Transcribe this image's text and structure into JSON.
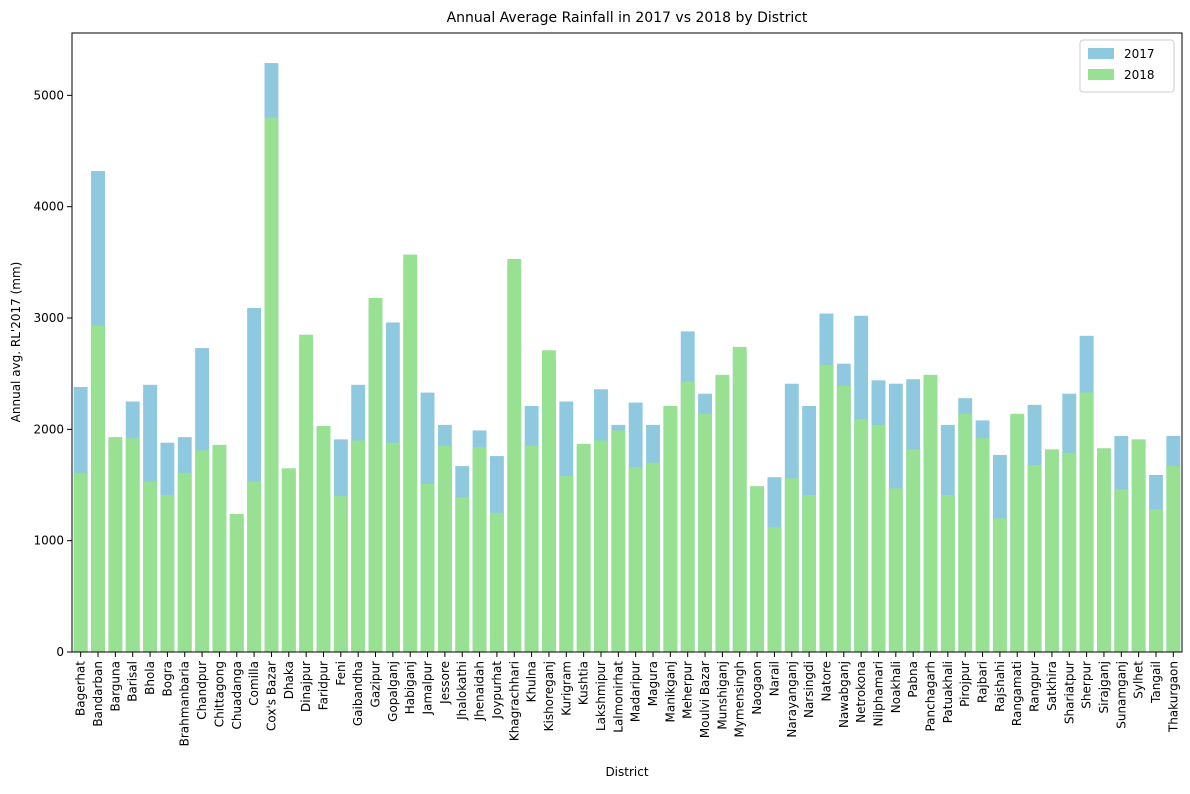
{
  "chart_data": {
    "type": "bar",
    "title": "Annual Average Rainfall in 2017 vs 2018 by District",
    "xlabel": "District",
    "ylabel": "Annual avg. RL'2017 (mm)",
    "ylim": [
      0,
      5560
    ],
    "yticks": [
      0,
      1000,
      2000,
      3000,
      4000,
      5000
    ],
    "legend_position": "top-right",
    "grid": false,
    "categories": [
      "Bagerhat",
      "Bandarban",
      "Barguna",
      "Barisal",
      "Bhola",
      "Bogra",
      "Brahmanbaria",
      "Chandpur",
      "Chittagong",
      "Chuadanga",
      "Comilla",
      "Cox's Bazar",
      "Dhaka",
      "Dinajpur",
      "Faridpur",
      "Feni",
      "Gaibandha",
      "Gazipur",
      "Gopalganj",
      "Habiganj",
      "Jamalpur",
      "Jessore",
      "Jhalokathi",
      "Jhenaidah",
      "Joypurhat",
      "Khagrachhari",
      "Khulna",
      "Kishoreganj",
      "Kurigram",
      "Kushtia",
      "Lakshmipur",
      "Lalmonirhat",
      "Madaripur",
      "Magura",
      "Manikganj",
      "Meherpur",
      "Moulvi Bazar",
      "Munshiganj",
      "Mymensingh",
      "Naogaon",
      "Narail",
      "Narayanganj",
      "Narsingdi",
      "Natore",
      "Nawabganj",
      "Netrokona",
      "Nilphamari",
      "Noakhali",
      "Pabna",
      "Panchagarh",
      "Patuakhali",
      "Pirojpur",
      "Rajbari",
      "Rajshahi",
      "Rangamati",
      "Rangpur",
      "Satkhira",
      "Shariatpur",
      "Sherpur",
      "Sirajganj",
      "Sunamganj",
      "Sylhet",
      "Tangail",
      "Thakurgaon"
    ],
    "series": [
      {
        "name": "2017",
        "color": "#8ec9e0",
        "values": [
          2380,
          4320,
          1900,
          2250,
          2400,
          1880,
          1930,
          2730,
          1840,
          1230,
          3090,
          5290,
          1640,
          2810,
          2020,
          1910,
          2400,
          3100,
          2960,
          3500,
          2330,
          2040,
          1670,
          1990,
          1760,
          3460,
          2210,
          2630,
          2250,
          1850,
          2360,
          2040,
          2240,
          2040,
          2200,
          2880,
          2320,
          2460,
          2700,
          1480,
          1570,
          2410,
          2210,
          3040,
          2590,
          3020,
          2440,
          2410,
          2450,
          2460,
          2040,
          2280,
          2080,
          1770,
          2120,
          2220,
          1800,
          2320,
          2840,
          1810,
          1940,
          1900,
          1590,
          1940
        ]
      },
      {
        "name": "2018",
        "color": "#98e193",
        "values": [
          1610,
          2930,
          1930,
          1920,
          1530,
          1410,
          1610,
          1810,
          1860,
          1240,
          1530,
          4800,
          1650,
          2850,
          2030,
          1400,
          1900,
          3180,
          1880,
          3570,
          1510,
          1850,
          1390,
          1840,
          1250,
          3530,
          1850,
          2710,
          1580,
          1870,
          1900,
          1990,
          1660,
          1700,
          2210,
          2430,
          2140,
          2490,
          2740,
          1490,
          1120,
          1560,
          1410,
          2580,
          2390,
          2090,
          2040,
          1470,
          1820,
          2490,
          1410,
          2140,
          1920,
          1200,
          2140,
          1680,
          1820,
          1790,
          2330,
          1830,
          1460,
          1910,
          1280,
          1670
        ]
      }
    ]
  }
}
